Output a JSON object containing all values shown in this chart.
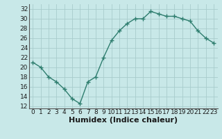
{
  "x": [
    0,
    1,
    2,
    3,
    4,
    5,
    6,
    7,
    8,
    9,
    10,
    11,
    12,
    13,
    14,
    15,
    16,
    17,
    18,
    19,
    20,
    21,
    22,
    23
  ],
  "y": [
    21,
    20,
    18,
    17,
    15.5,
    13.5,
    12.5,
    17,
    18,
    22,
    25.5,
    27.5,
    29,
    30,
    30,
    31.5,
    31,
    30.5,
    30.5,
    30,
    29.5,
    27.5,
    26,
    25
  ],
  "line_color": "#2e7d6e",
  "marker": "+",
  "marker_size": 4,
  "bg_color": "#c8e8e8",
  "grid_color": "#a8cccc",
  "xlabel": "Humidex (Indice chaleur)",
  "xlim": [
    -0.5,
    23.5
  ],
  "ylim": [
    11.5,
    33.0
  ],
  "yticks": [
    12,
    14,
    16,
    18,
    20,
    22,
    24,
    26,
    28,
    30,
    32
  ],
  "xticks": [
    0,
    1,
    2,
    3,
    4,
    5,
    6,
    7,
    8,
    9,
    10,
    11,
    12,
    13,
    14,
    15,
    16,
    17,
    18,
    19,
    20,
    21,
    22,
    23
  ],
  "tick_fontsize": 6.5,
  "xlabel_fontsize": 8,
  "line_width": 1.0,
  "marker_edge_width": 1.0
}
